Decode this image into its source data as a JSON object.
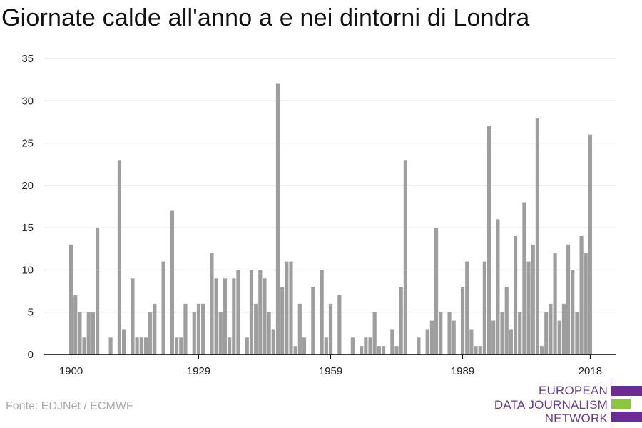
{
  "title": "Giornate calde all'anno a e nei dintorni di Londra",
  "source": "Fonte: EDJNet / ECMWF",
  "logo": {
    "lines": [
      "EUROPEAN",
      "DATA JOURNALISM",
      "NETWORK"
    ],
    "text_color": "#6a3a93",
    "bar_colors": [
      "#6a2c91",
      "#8cc63f",
      "#6a2c91"
    ]
  },
  "colors": {
    "bar": "#9e9e9e",
    "grid": "#dddddd",
    "axis": "#000000"
  },
  "chart_data": {
    "type": "bar",
    "title": "Giornate calde all'anno a e nei dintorni di Londra",
    "xlabel": "",
    "ylabel": "",
    "x_tick_labels": [
      "1900",
      "1929",
      "1959",
      "1989",
      "2018"
    ],
    "y_ticks": [
      0,
      5,
      10,
      15,
      20,
      25,
      30,
      35
    ],
    "ylim": [
      0,
      35
    ],
    "grid": true,
    "x": [
      1900,
      1901,
      1902,
      1903,
      1904,
      1905,
      1906,
      1907,
      1908,
      1909,
      1910,
      1911,
      1912,
      1913,
      1914,
      1915,
      1916,
      1917,
      1918,
      1919,
      1920,
      1921,
      1922,
      1923,
      1924,
      1925,
      1926,
      1927,
      1928,
      1929,
      1930,
      1931,
      1932,
      1933,
      1934,
      1935,
      1936,
      1937,
      1938,
      1939,
      1940,
      1941,
      1942,
      1943,
      1944,
      1945,
      1946,
      1947,
      1948,
      1949,
      1950,
      1951,
      1952,
      1953,
      1954,
      1955,
      1956,
      1957,
      1958,
      1959,
      1960,
      1961,
      1962,
      1963,
      1964,
      1965,
      1966,
      1967,
      1968,
      1969,
      1970,
      1971,
      1972,
      1973,
      1974,
      1975,
      1976,
      1977,
      1978,
      1979,
      1980,
      1981,
      1982,
      1983,
      1984,
      1985,
      1986,
      1987,
      1988,
      1989,
      1990,
      1991,
      1992,
      1993,
      1994,
      1995,
      1996,
      1997,
      1998,
      1999,
      2000,
      2001,
      2002,
      2003,
      2004,
      2005,
      2006,
      2007,
      2008,
      2009,
      2010,
      2011,
      2012,
      2013,
      2014,
      2015,
      2016,
      2017,
      2018
    ],
    "values": [
      13,
      7,
      5,
      2,
      5,
      5,
      15,
      0,
      0,
      2,
      0,
      23,
      3,
      0,
      9,
      2,
      2,
      2,
      5,
      6,
      0,
      11,
      0,
      17,
      2,
      2,
      6,
      0,
      5,
      6,
      6,
      0,
      12,
      9,
      5,
      9,
      2,
      9,
      10,
      0,
      2,
      10,
      6,
      10,
      9,
      5,
      3,
      32,
      8,
      11,
      11,
      1,
      6,
      2,
      0,
      8,
      0,
      10,
      2,
      6,
      0,
      7,
      0,
      0,
      2,
      0,
      1,
      2,
      2,
      5,
      1,
      1,
      0,
      3,
      1,
      8,
      23,
      0,
      0,
      2,
      0,
      3,
      4,
      15,
      5,
      0,
      5,
      4,
      0,
      8,
      11,
      3,
      1,
      1,
      11,
      27,
      4,
      16,
      5,
      8,
      3,
      14,
      5,
      18,
      11,
      13,
      28,
      1,
      5,
      6,
      12,
      4,
      6,
      13,
      10,
      5,
      14,
      12,
      26
    ]
  }
}
